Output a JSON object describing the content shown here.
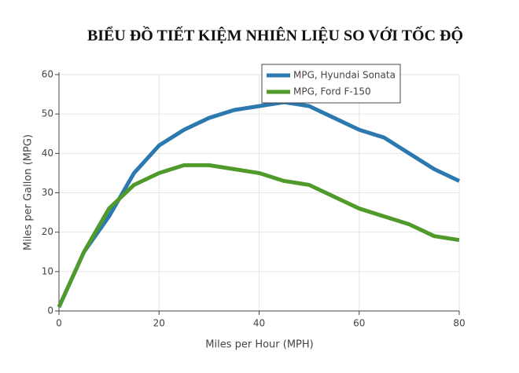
{
  "chart_data": {
    "type": "line",
    "title": "BIỂU ĐỒ TIẾT KIỆM NHIÊN LIỆU SO VỚI TỐC ĐỘ",
    "x_label": "Miles per Hour (MPH)",
    "y_label": "Miles per Gallon (MPG)",
    "x": [
      0,
      5,
      10,
      15,
      20,
      25,
      30,
      35,
      40,
      45,
      50,
      55,
      60,
      65,
      70,
      75,
      80
    ],
    "series": [
      {
        "name": "MPG, Hyundai Sonata",
        "color": "#2c79b0",
        "values": [
          1,
          15,
          24,
          35,
          42,
          46,
          49,
          51,
          52,
          53,
          52,
          49,
          46,
          44,
          40,
          36,
          33
        ]
      },
      {
        "name": "MPG, Ford F-150",
        "color": "#4f9a2a",
        "values": [
          1,
          15,
          26,
          32,
          35,
          37,
          37,
          36,
          35,
          33,
          32,
          29,
          26,
          24,
          22,
          19,
          18
        ]
      }
    ],
    "xlim": [
      0,
      80
    ],
    "xticks": [
      0,
      20,
      40,
      60,
      80
    ],
    "ylim": [
      0,
      60
    ],
    "yticks": [
      0,
      10,
      20,
      30,
      40,
      50,
      60
    ],
    "grid": true,
    "legend": "top-right"
  }
}
